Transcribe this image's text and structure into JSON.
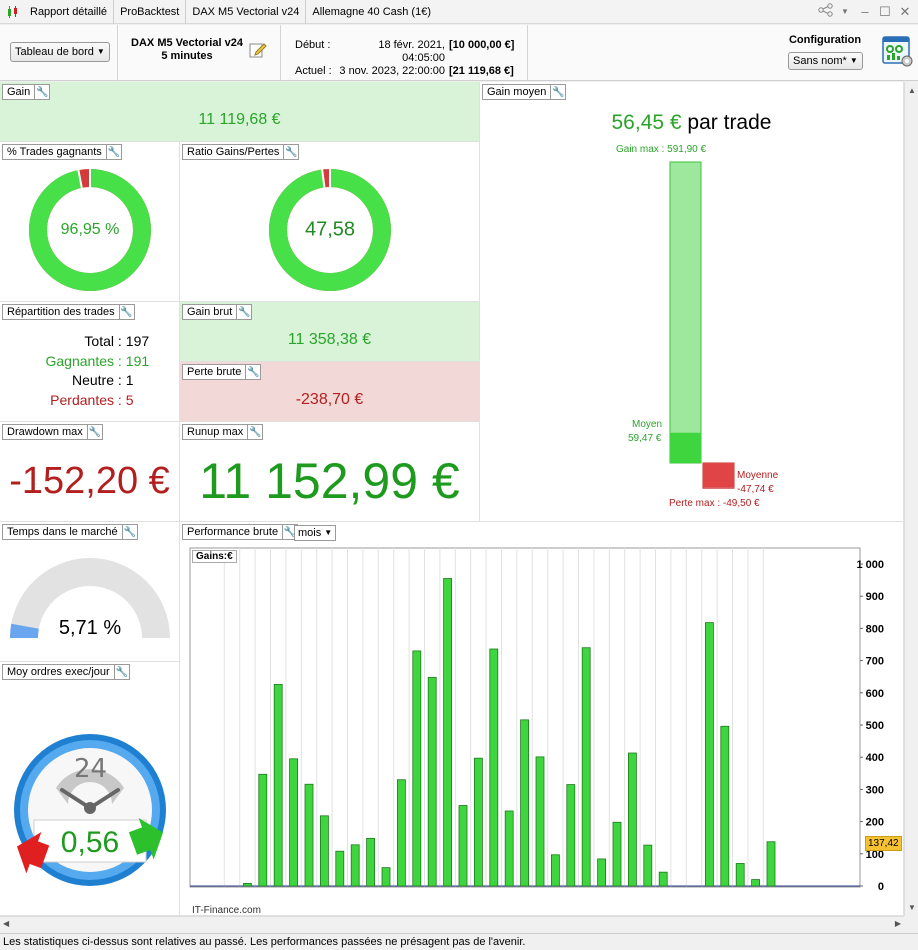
{
  "tabs": [
    {
      "label": "Rapport détaillé"
    },
    {
      "label": "ProBacktest"
    },
    {
      "label": "DAX M5 Vectorial v24"
    },
    {
      "label": "Allemagne 40 Cash (1€)"
    }
  ],
  "header": {
    "dashboard_select": "Tableau de bord",
    "strategy_name": "DAX M5 Vectorial v24",
    "timeframe": "5 minutes",
    "start_label": "Début :",
    "start_date": "18 févr. 2021, 04:05:00",
    "start_capital": "[10 000,00 €]",
    "current_label": "Actuel :",
    "current_date": "3 nov. 2023, 22:00:00",
    "current_capital": "[21 119,68 €]",
    "config_label": "Configuration",
    "config_select": "Sans nom*"
  },
  "panels": {
    "gain": {
      "title": "Gain",
      "value": "11 119,68 €"
    },
    "win_pct": {
      "title": "% Trades gagnants",
      "value": "96,95 %",
      "fraction": 0.9695
    },
    "ratio": {
      "title": "Ratio Gains/Pertes",
      "value": "47,58",
      "fraction": 0.9794
    },
    "avg_gain": {
      "title": "Gain moyen",
      "value": "56,45 €",
      "suffix": "par trade",
      "max_gain_label": "Gain max : 591,90 €",
      "avg_win_label": "Moyen",
      "avg_win_value": "59,47 €",
      "avg_loss_label": "Moyenne",
      "avg_loss_value": "-47,74 €",
      "max_loss_label": "Perte max : -49,50 €",
      "max_gain": 591.9,
      "avg_win": 59.47,
      "avg_loss": 47.74,
      "max_loss": 49.5
    },
    "distribution": {
      "title": "Répartition des trades",
      "rows": [
        {
          "key": "Total",
          "value": "197"
        },
        {
          "key": "Gagnantes",
          "value": "191"
        },
        {
          "key": "Neutre",
          "value": "1"
        },
        {
          "key": "Perdantes",
          "value": "5"
        }
      ]
    },
    "gross_gain": {
      "title": "Gain brut",
      "value": "11 358,38 €"
    },
    "gross_loss": {
      "title": "Perte brute",
      "value": "-238,70 €"
    },
    "drawdown": {
      "title": "Drawdown max",
      "value": "-152,20 €"
    },
    "runup": {
      "title": "Runup max",
      "value": "11 152,99 €"
    },
    "time_in_market": {
      "title": "Temps dans le marché",
      "value": "5,71 %",
      "fraction": 0.0571
    },
    "orders_per_day": {
      "title": "Moy ordres exec/jour",
      "value": "0,56",
      "clock_label": "24"
    },
    "performance": {
      "title": "Performance brute",
      "period_select": "mois",
      "gains_label": "Gains:",
      "gains_unit": "€"
    }
  },
  "chart_data": {
    "type": "bar",
    "title": "Performance brute",
    "ylabel": "Gains: €",
    "ylim": [
      0,
      1000
    ],
    "yticks": [
      "0",
      "100",
      "200",
      "300",
      "400",
      "500",
      "600",
      "700",
      "800",
      "900",
      "1 000"
    ],
    "last_value_label": "137,42",
    "watermark": "IT-Finance.com",
    "values": [
      0,
      8,
      347,
      626,
      395,
      316,
      218,
      108,
      128,
      148,
      57,
      330,
      730,
      648,
      955,
      250,
      397,
      736,
      233,
      516,
      401,
      97,
      315,
      740,
      84,
      198,
      413,
      127,
      43,
      0,
      0,
      818,
      496,
      70,
      20,
      137.42
    ]
  },
  "colors": {
    "green_text": "#2aa52a",
    "red_text": "#b31e1e",
    "bar_green": "#3fd53f",
    "gain_bg": "#d8f3d8",
    "loss_bg": "#f3d8d8"
  },
  "footer": {
    "text": "Les statistiques ci-dessus sont relatives au passé. Les performances passées ne présagent pas de l'avenir."
  }
}
